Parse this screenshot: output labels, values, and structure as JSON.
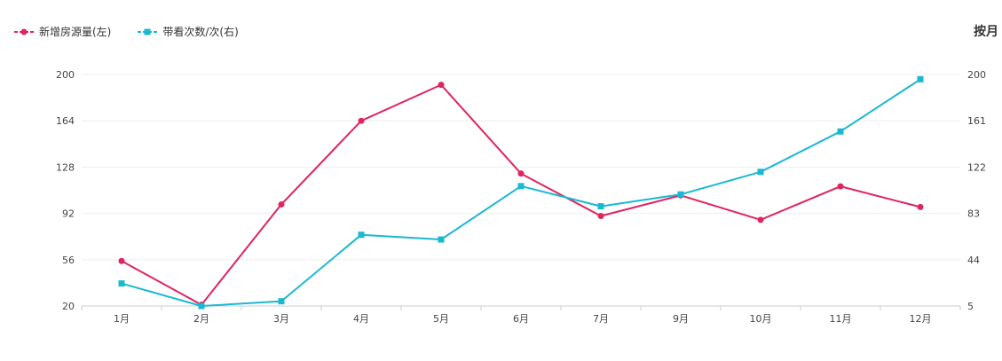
{
  "legend": {
    "items": [
      {
        "label": "新增房源量(左)",
        "color": "#e0245e",
        "marker": "circle"
      },
      {
        "label": "带看次数/次(右)",
        "color": "#1ab8d2",
        "marker": "square"
      }
    ]
  },
  "period_label": "按月",
  "chart_data": {
    "type": "line",
    "categories": [
      "1月",
      "2月",
      "3月",
      "4月",
      "5月",
      "6月",
      "7月",
      "9月",
      "10月",
      "11月",
      "12月"
    ],
    "y_left": {
      "ticks": [
        20,
        56,
        92,
        128,
        164,
        200
      ],
      "range": [
        20,
        200
      ]
    },
    "y_right": {
      "ticks": [
        5,
        44,
        83,
        122,
        161,
        200
      ],
      "range": [
        5,
        200
      ]
    },
    "grid": "horizontal",
    "legend_position": "top-left",
    "series": [
      {
        "name": "新增房源量(左)",
        "axis": "left",
        "color": "#e0245e",
        "marker": "circle",
        "values": [
          55,
          21,
          99,
          164,
          192,
          123,
          90,
          106,
          87,
          113,
          97
        ]
      },
      {
        "name": "带看次数/次(右)",
        "axis": "right",
        "color": "#1ab8d2",
        "marker": "square",
        "values": [
          24,
          5,
          9,
          65,
          61,
          106,
          89,
          99,
          118,
          152,
          196
        ]
      }
    ]
  }
}
